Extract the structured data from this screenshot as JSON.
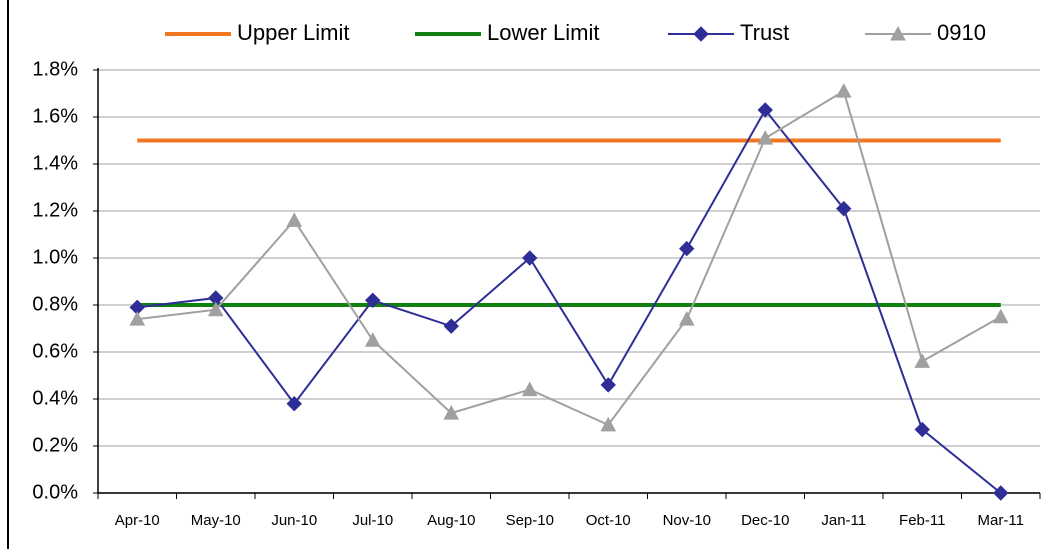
{
  "chart_data": {
    "type": "line",
    "categories": [
      "Apr-10",
      "May-10",
      "Jun-10",
      "Jul-10",
      "Aug-10",
      "Sep-10",
      "Oct-10",
      "Nov-10",
      "Dec-10",
      "Jan-11",
      "Feb-11",
      "Mar-11"
    ],
    "series": [
      {
        "name": "Upper Limit",
        "color": "#f07820",
        "marker": "none",
        "values": [
          1.5,
          1.5,
          1.5,
          1.5,
          1.5,
          1.5,
          1.5,
          1.5,
          1.5,
          1.5,
          1.5,
          1.5
        ]
      },
      {
        "name": "Lower Limit",
        "color": "#108010",
        "marker": "none",
        "values": [
          0.8,
          0.8,
          0.8,
          0.8,
          0.8,
          0.8,
          0.8,
          0.8,
          0.8,
          0.8,
          0.8,
          0.8
        ]
      },
      {
        "name": "Trust",
        "color": "#2e2e96",
        "marker": "diamond",
        "values": [
          0.79,
          0.83,
          0.38,
          0.82,
          0.71,
          1.0,
          0.46,
          1.04,
          1.63,
          1.21,
          0.27,
          0
        ]
      },
      {
        "name": "0910",
        "color": "#a0a0a0",
        "marker": "triangle",
        "values": [
          0.74,
          0.78,
          1.16,
          0.65,
          0.34,
          0.44,
          0.29,
          0.74,
          1.51,
          1.71,
          0.56,
          0.75
        ]
      }
    ],
    "ylim": [
      0,
      1.8
    ],
    "yticks": [
      {
        "value": 0,
        "label": "0.0%"
      },
      {
        "value": 0.2,
        "label": "0.2%"
      },
      {
        "value": 0.4,
        "label": "0.4%"
      },
      {
        "value": 0.6,
        "label": "0.6%"
      },
      {
        "value": 0.8,
        "label": "0.8%"
      },
      {
        "value": 1,
        "label": "1.0%"
      },
      {
        "value": 1.2,
        "label": "1.2%"
      },
      {
        "value": 1.4,
        "label": "1.4%"
      },
      {
        "value": 1.6,
        "label": "1.6%"
      },
      {
        "value": 1.8,
        "label": "1.8%"
      }
    ],
    "grid": true,
    "legend": "top"
  }
}
